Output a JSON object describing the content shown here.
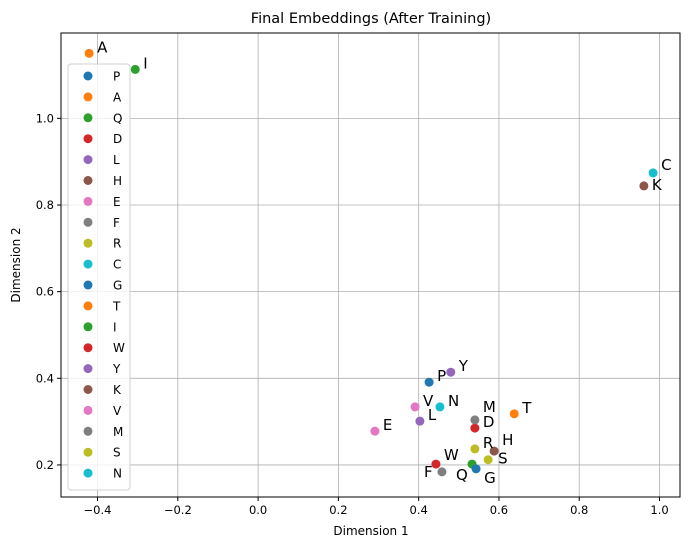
{
  "chart_data": {
    "type": "scatter",
    "title": "Final Embeddings (After Training)",
    "xlabel": "Dimension 1",
    "ylabel": "Dimension 2",
    "xlim": [
      -0.491,
      1.051
    ],
    "ylim": [
      0.126,
      1.197
    ],
    "grid": true,
    "legend_placement": "upper-left",
    "xticks": [
      -0.4,
      -0.2,
      0.0,
      0.2,
      0.4,
      0.6,
      0.8,
      1.0
    ],
    "xtick_labels": [
      "−0.4",
      "−0.2",
      "0.0",
      "0.2",
      "0.4",
      "0.6",
      "0.8",
      "1.0"
    ],
    "yticks": [
      0.2,
      0.4,
      0.6,
      0.8,
      1.0
    ],
    "ytick_labels": [
      "0.2",
      "0.4",
      "0.6",
      "0.8",
      "1.0"
    ],
    "points": [
      {
        "label": "P",
        "x": 0.426,
        "y": 0.391,
        "color": "#1f77b4"
      },
      {
        "label": "A",
        "x": -0.421,
        "y": 1.15,
        "color": "#ff7f0e"
      },
      {
        "label": "Q",
        "x": 0.533,
        "y": 0.202,
        "color": "#2ca02c"
      },
      {
        "label": "D",
        "x": 0.54,
        "y": 0.285,
        "color": "#d62728"
      },
      {
        "label": "L",
        "x": 0.403,
        "y": 0.301,
        "color": "#9467bd"
      },
      {
        "label": "H",
        "x": 0.588,
        "y": 0.232,
        "color": "#8c564b"
      },
      {
        "label": "E",
        "x": 0.291,
        "y": 0.278,
        "color": "#e377c2"
      },
      {
        "label": "F",
        "x": 0.458,
        "y": 0.184,
        "color": "#7f7f7f"
      },
      {
        "label": "R",
        "x": 0.54,
        "y": 0.237,
        "color": "#bcbd22"
      },
      {
        "label": "C",
        "x": 0.984,
        "y": 0.874,
        "color": "#17becf"
      },
      {
        "label": "G",
        "x": 0.543,
        "y": 0.191,
        "color": "#1f77b4"
      },
      {
        "label": "T",
        "x": 0.638,
        "y": 0.318,
        "color": "#ff7f0e"
      },
      {
        "label": "I",
        "x": -0.306,
        "y": 1.113,
        "color": "#2ca02c"
      },
      {
        "label": "W",
        "x": 0.443,
        "y": 0.202,
        "color": "#d62728"
      },
      {
        "label": "Y",
        "x": 0.48,
        "y": 0.414,
        "color": "#9467bd"
      },
      {
        "label": "K",
        "x": 0.961,
        "y": 0.844,
        "color": "#8c564b"
      },
      {
        "label": "V",
        "x": 0.391,
        "y": 0.334,
        "color": "#e377c2"
      },
      {
        "label": "M",
        "x": 0.54,
        "y": 0.304,
        "color": "#7f7f7f"
      },
      {
        "label": "S",
        "x": 0.573,
        "y": 0.212,
        "color": "#bcbd22"
      },
      {
        "label": "N",
        "x": 0.453,
        "y": 0.334,
        "color": "#17becf"
      }
    ]
  }
}
